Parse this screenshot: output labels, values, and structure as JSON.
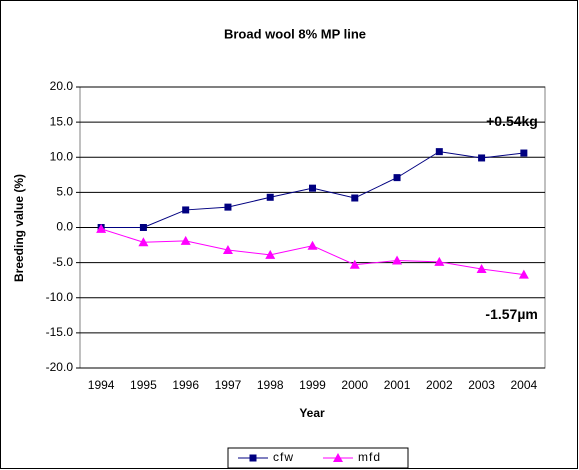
{
  "chart_data": {
    "type": "line",
    "title": "Broad wool 8% MP line",
    "x_label": "Year",
    "y_label": "Breeding value (%)",
    "categories": [
      "1994",
      "1995",
      "1996",
      "1997",
      "1998",
      "1999",
      "2000",
      "2001",
      "2002",
      "2003",
      "2004"
    ],
    "series": [
      {
        "name": "cfw",
        "color": "#000080",
        "marker": "square",
        "values": [
          0,
          0,
          2.5,
          2.9,
          4.3,
          5.6,
          4.2,
          7.1,
          10.8,
          9.9,
          10.6
        ]
      },
      {
        "name": "mfd",
        "color": "#ff00ff",
        "marker": "triangle",
        "values": [
          -0.2,
          -2.1,
          -1.9,
          -3.2,
          -3.9,
          -2.6,
          -5.3,
          -4.7,
          -4.9,
          -5.9,
          -6.7
        ]
      }
    ],
    "annotations": [
      {
        "text": "+0.54kg",
        "x": "2004",
        "y": 15
      },
      {
        "text": "-1.57µm",
        "x": "2004",
        "y": -12.5
      }
    ],
    "ylim": [
      -20,
      20
    ],
    "yticks": [
      {
        "value": -20,
        "label": "-20.0"
      },
      {
        "value": -15,
        "label": "-15.0"
      },
      {
        "value": -10,
        "label": "-10.0"
      },
      {
        "value": -5,
        "label": "-5.0"
      },
      {
        "value": 0,
        "label": "0.0"
      },
      {
        "value": 5,
        "label": "5.0"
      },
      {
        "value": 10,
        "label": "10.0"
      },
      {
        "value": 15,
        "label": "15.0"
      },
      {
        "value": 20,
        "label": "20.0"
      }
    ],
    "grid": true,
    "legend": "bottom"
  }
}
